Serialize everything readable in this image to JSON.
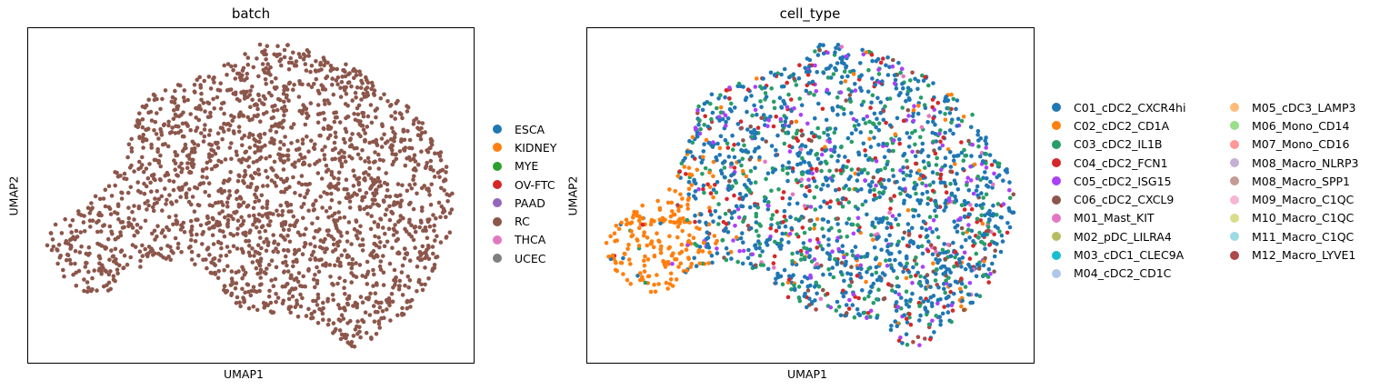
{
  "chart_data": [
    {
      "type": "scatter",
      "title": "batch",
      "xlabel": "UMAP1",
      "ylabel": "UMAP2",
      "grid": false,
      "legend_placement": "right",
      "legend": [
        {
          "name": "ESCA",
          "color": "#1f77b4"
        },
        {
          "name": "KIDNEY",
          "color": "#ff7f0e"
        },
        {
          "name": "MYE",
          "color": "#2ca02c"
        },
        {
          "name": "OV-FTC",
          "color": "#d62728"
        },
        {
          "name": "PAAD",
          "color": "#9467bd"
        },
        {
          "name": "RC",
          "color": "#8c564b"
        },
        {
          "name": "THCA",
          "color": "#e377c2"
        },
        {
          "name": "UCEC",
          "color": "#7f7f7f"
        }
      ],
      "point_color": "#8c564b"
    },
    {
      "type": "scatter",
      "title": "cell_type",
      "xlabel": "UMAP1",
      "ylabel": "UMAP2",
      "grid": false,
      "legend_placement": "right",
      "legend_columns": [
        [
          {
            "name": "C01_cDC2_CXCR4hi",
            "color": "#1f77b4"
          },
          {
            "name": "C02_cDC2_CD1A",
            "color": "#ff7f0e"
          },
          {
            "name": "C03_cDC2_IL1B",
            "color": "#279e68"
          },
          {
            "name": "C04_cDC2_FCN1",
            "color": "#d62728"
          },
          {
            "name": "C05_cDC2_ISG15",
            "color": "#aa40fc"
          },
          {
            "name": "C06_cDC2_CXCL9",
            "color": "#8c564b"
          },
          {
            "name": "M01_Mast_KIT",
            "color": "#e377c2"
          },
          {
            "name": "M02_pDC_LILRA4",
            "color": "#b5bd61"
          },
          {
            "name": "M03_cDC1_CLEC9A",
            "color": "#17becf"
          },
          {
            "name": "M04_cDC2_CD1C",
            "color": "#aec7e8"
          }
        ],
        [
          {
            "name": "M05_cDC3_LAMP3",
            "color": "#ffbb78"
          },
          {
            "name": "M06_Mono_CD14",
            "color": "#98df8a"
          },
          {
            "name": "M07_Mono_CD16",
            "color": "#ff9896"
          },
          {
            "name": "M08_Macro_NLRP3",
            "color": "#c5b0d5"
          },
          {
            "name": "M08_Macro_SPP1",
            "color": "#c49c94"
          },
          {
            "name": "M09_Macro_C1QC",
            "color": "#f7b6d2"
          },
          {
            "name": "M10_Macro_C1QC",
            "color": "#dbdb8d"
          },
          {
            "name": "M11_Macro_C1QC",
            "color": "#9edae5"
          },
          {
            "name": "M12_Macro_LYVE1",
            "color": "#ad494a"
          }
        ]
      ],
      "category_mix": {
        "C01_cDC2_CXCR4hi": 0.5,
        "C03_cDC2_IL1B": 0.22,
        "C04_cDC2_FCN1": 0.08,
        "C05_cDC2_ISG15": 0.08,
        "C02_cDC2_CD1A": 0.04,
        "C06_cDC2_CXCL9": 0.04,
        "M01_Mast_KIT": 0.02,
        "M12_Macro_LYVE1": 0.02
      },
      "orange_cluster_category": "C02_cDC2_CD1A"
    }
  ]
}
